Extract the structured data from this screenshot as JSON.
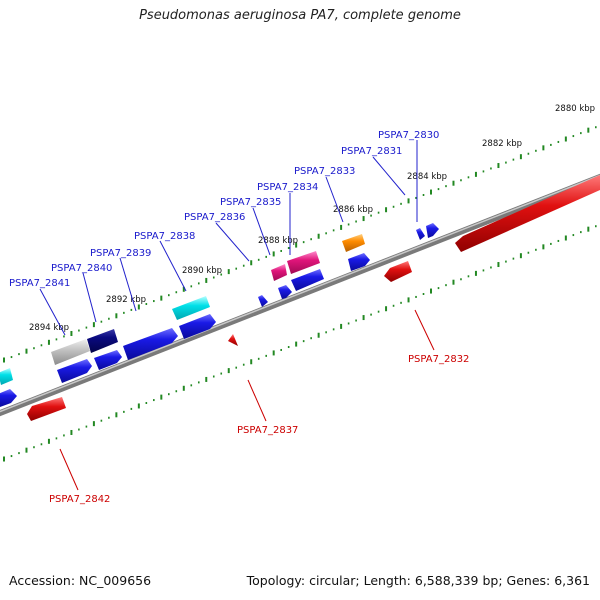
{
  "title": "Pseudomonas aeruginosa PA7, complete genome",
  "footer": {
    "accession": "Accession: NC_009656",
    "summary": "Topology: circular; Length: 6,588,339 bp; Genes: 6,361"
  },
  "kbp_labels": [
    "2880 kbp",
    "2882 kbp",
    "2884 kbp",
    "2886 kbp",
    "2888 kbp",
    "2890 kbp",
    "2892 kbp",
    "2894 kbp"
  ],
  "forward_genes": [
    {
      "label": "PSPA7_2830",
      "color": "#1a1ae6"
    },
    {
      "label": "PSPA7_2831",
      "color": "#1a1ae6"
    },
    {
      "label": "PSPA7_2833",
      "color": "#ff8c00"
    },
    {
      "label": "PSPA7_2834",
      "color": "#e0157a"
    },
    {
      "label": "PSPA7_2835",
      "color": "#1a1ae6"
    },
    {
      "label": "PSPA7_2836",
      "color": "#1a1ae6"
    },
    {
      "label": "PSPA7_2838",
      "color": "#00d8e0"
    },
    {
      "label": "PSPA7_2839",
      "color": "#1a1ae6"
    },
    {
      "label": "PSPA7_2840",
      "color": "#0a0a80"
    },
    {
      "label": "PSPA7_2841",
      "color": "#b0b0b0"
    }
  ],
  "reverse_genes": [
    {
      "label": "PSPA7_2832",
      "color": "#e01010"
    },
    {
      "label": "PSPA7_2837",
      "color": "#e01010"
    },
    {
      "label": "PSPA7_2842",
      "color": "#e01010"
    }
  ],
  "colors": {
    "label_forward": "#1a1acc",
    "label_reverse": "#cc0000",
    "backbone": "#808080",
    "ticks": "#228822"
  }
}
